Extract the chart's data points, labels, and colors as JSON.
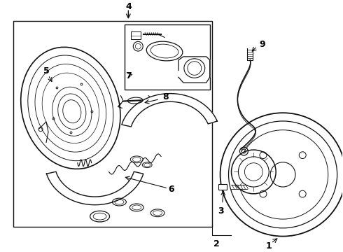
{
  "bg_color": "#ffffff",
  "line_color": "#111111",
  "label_color": "#000000",
  "fig_width": 4.9,
  "fig_height": 3.6,
  "dpi": 100
}
